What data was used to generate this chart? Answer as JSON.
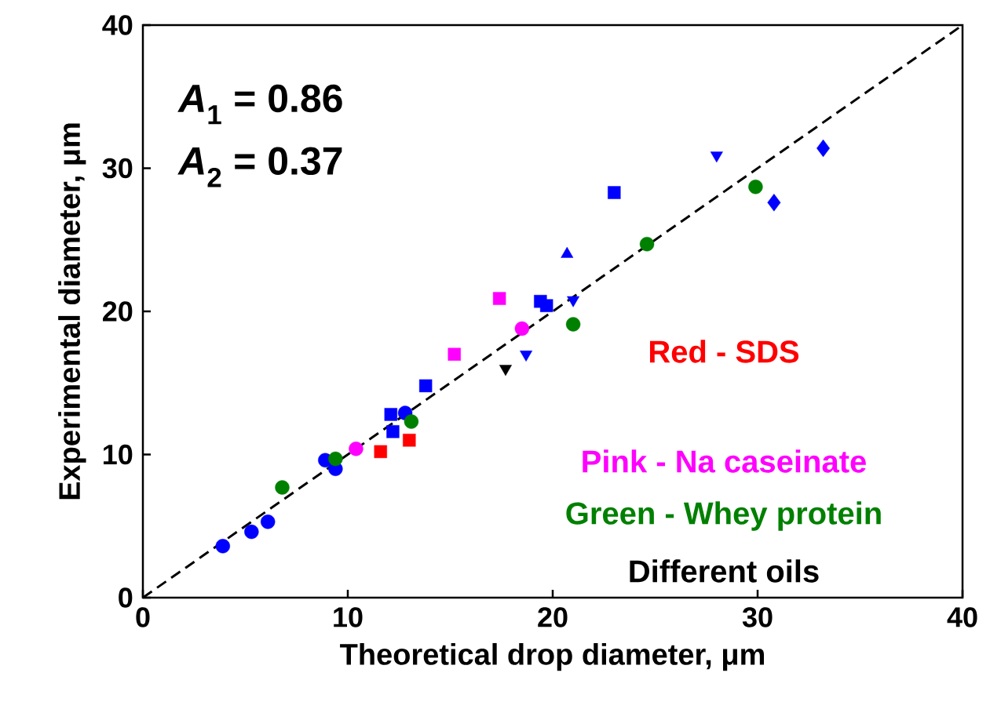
{
  "chart_data": {
    "type": "scatter",
    "xlabel": "Theoretical drop diameter, μm",
    "ylabel": "Experimental diameter, μm",
    "xlim": [
      0,
      40
    ],
    "ylim": [
      0,
      40
    ],
    "xticks": [
      0,
      10,
      20,
      30,
      40
    ],
    "yticks": [
      0,
      10,
      20,
      30,
      40
    ],
    "grid": false,
    "annotations": [
      "*A*$_{1}$ = 0.86",
      "*A*$_{2}$ = 0.37",
      "Red - SDS",
      "Pink - Na caseinate",
      "Green - Whey protein",
      "Different oils"
    ],
    "series": [
      {
        "color": "#0000ff",
        "marker": "circle",
        "x": [
          3.9,
          5.3,
          6.1,
          8.9,
          9.4,
          12.8
        ],
        "values": [
          3.6,
          4.6,
          5.3,
          9.6,
          9.0,
          12.9
        ]
      },
      {
        "color": "#0000ff",
        "marker": "square",
        "x": [
          13.8,
          12.1,
          12.2,
          23.0,
          19.4,
          19.7
        ],
        "values": [
          14.8,
          12.8,
          11.6,
          28.3,
          20.7,
          20.4
        ]
      },
      {
        "color": "#0000ff",
        "marker": "triangle",
        "x": [
          20.7
        ],
        "values": [
          24.0
        ]
      },
      {
        "color": "#0000ff",
        "marker": "triangle-down",
        "x": [
          28.0,
          21.0,
          18.7
        ],
        "values": [
          30.9,
          20.8,
          17.0
        ]
      },
      {
        "color": "#0000ff",
        "marker": "diamond",
        "x": [
          33.2,
          30.8
        ],
        "values": [
          31.4,
          27.6
        ]
      },
      {
        "color": "#ff0000",
        "marker": "square",
        "x": [
          11.6,
          13.0
        ],
        "values": [
          10.2,
          11.0
        ]
      },
      {
        "color": "#ff00ff",
        "marker": "square",
        "x": [
          17.4,
          15.2
        ],
        "values": [
          20.9,
          17.0
        ]
      },
      {
        "color": "#ff00ff",
        "marker": "circle",
        "x": [
          18.5,
          10.4
        ],
        "values": [
          18.8,
          10.4
        ]
      },
      {
        "color": "#008000",
        "marker": "circle",
        "x": [
          6.8,
          9.4,
          13.1,
          21.0,
          24.6,
          29.9
        ],
        "values": [
          7.7,
          9.7,
          12.3,
          19.1,
          24.7,
          28.7
        ]
      },
      {
        "color": "#000000",
        "marker": "triangle-down",
        "x": [
          17.7
        ],
        "values": [
          16.0
        ]
      },
      {
        "type": "line",
        "color": "#000000",
        "line_style": "dashed",
        "x": [
          0,
          40
        ],
        "values": [
          0,
          40
        ]
      }
    ]
  }
}
